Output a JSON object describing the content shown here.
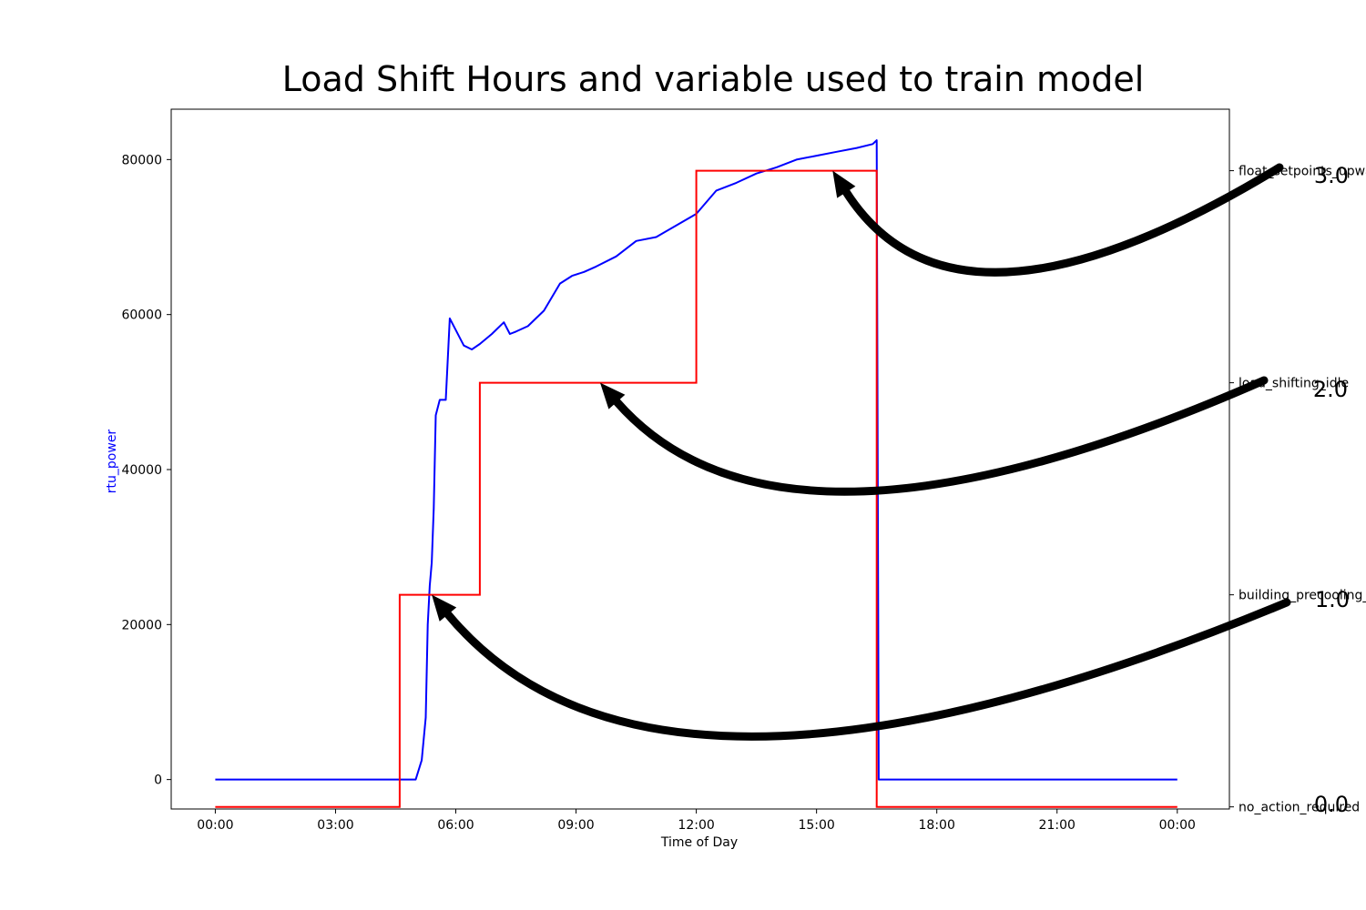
{
  "chart_data": {
    "type": "line",
    "title": "Load Shift Hours and variable used to train model",
    "xlabel": "Time of Day",
    "ylabel": "rtu_power",
    "xlim_hours": [
      -1.1,
      25.3
    ],
    "ylim": [
      -3800,
      86500
    ],
    "x_ticks": [
      {
        "hour": 0,
        "label": "00:00"
      },
      {
        "hour": 3,
        "label": "03:00"
      },
      {
        "hour": 6,
        "label": "06:00"
      },
      {
        "hour": 9,
        "label": "09:00"
      },
      {
        "hour": 12,
        "label": "12:00"
      },
      {
        "hour": 15,
        "label": "15:00"
      },
      {
        "hour": 18,
        "label": "18:00"
      },
      {
        "hour": 21,
        "label": "21:00"
      },
      {
        "hour": 24,
        "label": "00:00"
      }
    ],
    "y_ticks": [
      0,
      20000,
      40000,
      60000,
      80000
    ],
    "y_tick_labels": [
      "0",
      "20000",
      "40000",
      "60000",
      "80000"
    ],
    "right_axis": {
      "ylim": [
        -0.01,
        3.29
      ],
      "ticks": [
        {
          "value": 0,
          "label": "no_action_required"
        },
        {
          "value": 1,
          "label": "building_precooling_"
        },
        {
          "value": 2,
          "label": "load_shifting_idle"
        },
        {
          "value": 3,
          "label": "float_setpoints_upwa"
        }
      ]
    },
    "series": [
      {
        "color": "#0000ff",
        "x_hours": [
          0,
          5.0,
          5.15,
          5.25,
          5.3,
          5.35,
          5.4,
          5.45,
          5.5,
          5.6,
          5.75,
          5.85,
          5.9,
          6.0,
          6.2,
          6.4,
          6.6,
          6.9,
          7.2,
          7.35,
          7.5,
          7.8,
          8.2,
          8.6,
          8.9,
          9.2,
          9.5,
          10.0,
          10.5,
          11.0,
          11.5,
          12.0,
          12.5,
          13.0,
          13.5,
          14.0,
          14.5,
          15.0,
          15.5,
          16.0,
          16.4,
          16.5,
          16.55,
          24.0
        ],
        "values": [
          0,
          0,
          2500,
          8000,
          20000,
          25000,
          28000,
          35000,
          47000,
          49000,
          49000,
          59500,
          59000,
          58000,
          56000,
          55500,
          56200,
          57500,
          59000,
          57500,
          57800,
          58500,
          60500,
          64000,
          65000,
          65500,
          66200,
          67500,
          69500,
          70000,
          71500,
          73000,
          76000,
          77000,
          78200,
          79000,
          80000,
          80500,
          81000,
          81500,
          82000,
          82500,
          0,
          0
        ]
      },
      {
        "color": "#ff0000",
        "x_hours": [
          0,
          4.6,
          4.6,
          6.6,
          6.6,
          12.0,
          12.0,
          16.5,
          16.5,
          24.0
        ],
        "right_axis_values": [
          0,
          0,
          1,
          1,
          2,
          2,
          3,
          3,
          0,
          0
        ]
      }
    ],
    "annotations": [
      {
        "text": "3.0",
        "target_hour": 15.4,
        "target_value": 3
      },
      {
        "text": "2.0",
        "target_hour": 9.6,
        "target_value": 2
      },
      {
        "text": "1.0",
        "target_hour": 5.4,
        "target_value": 1
      },
      {
        "text": "0.0"
      }
    ]
  }
}
